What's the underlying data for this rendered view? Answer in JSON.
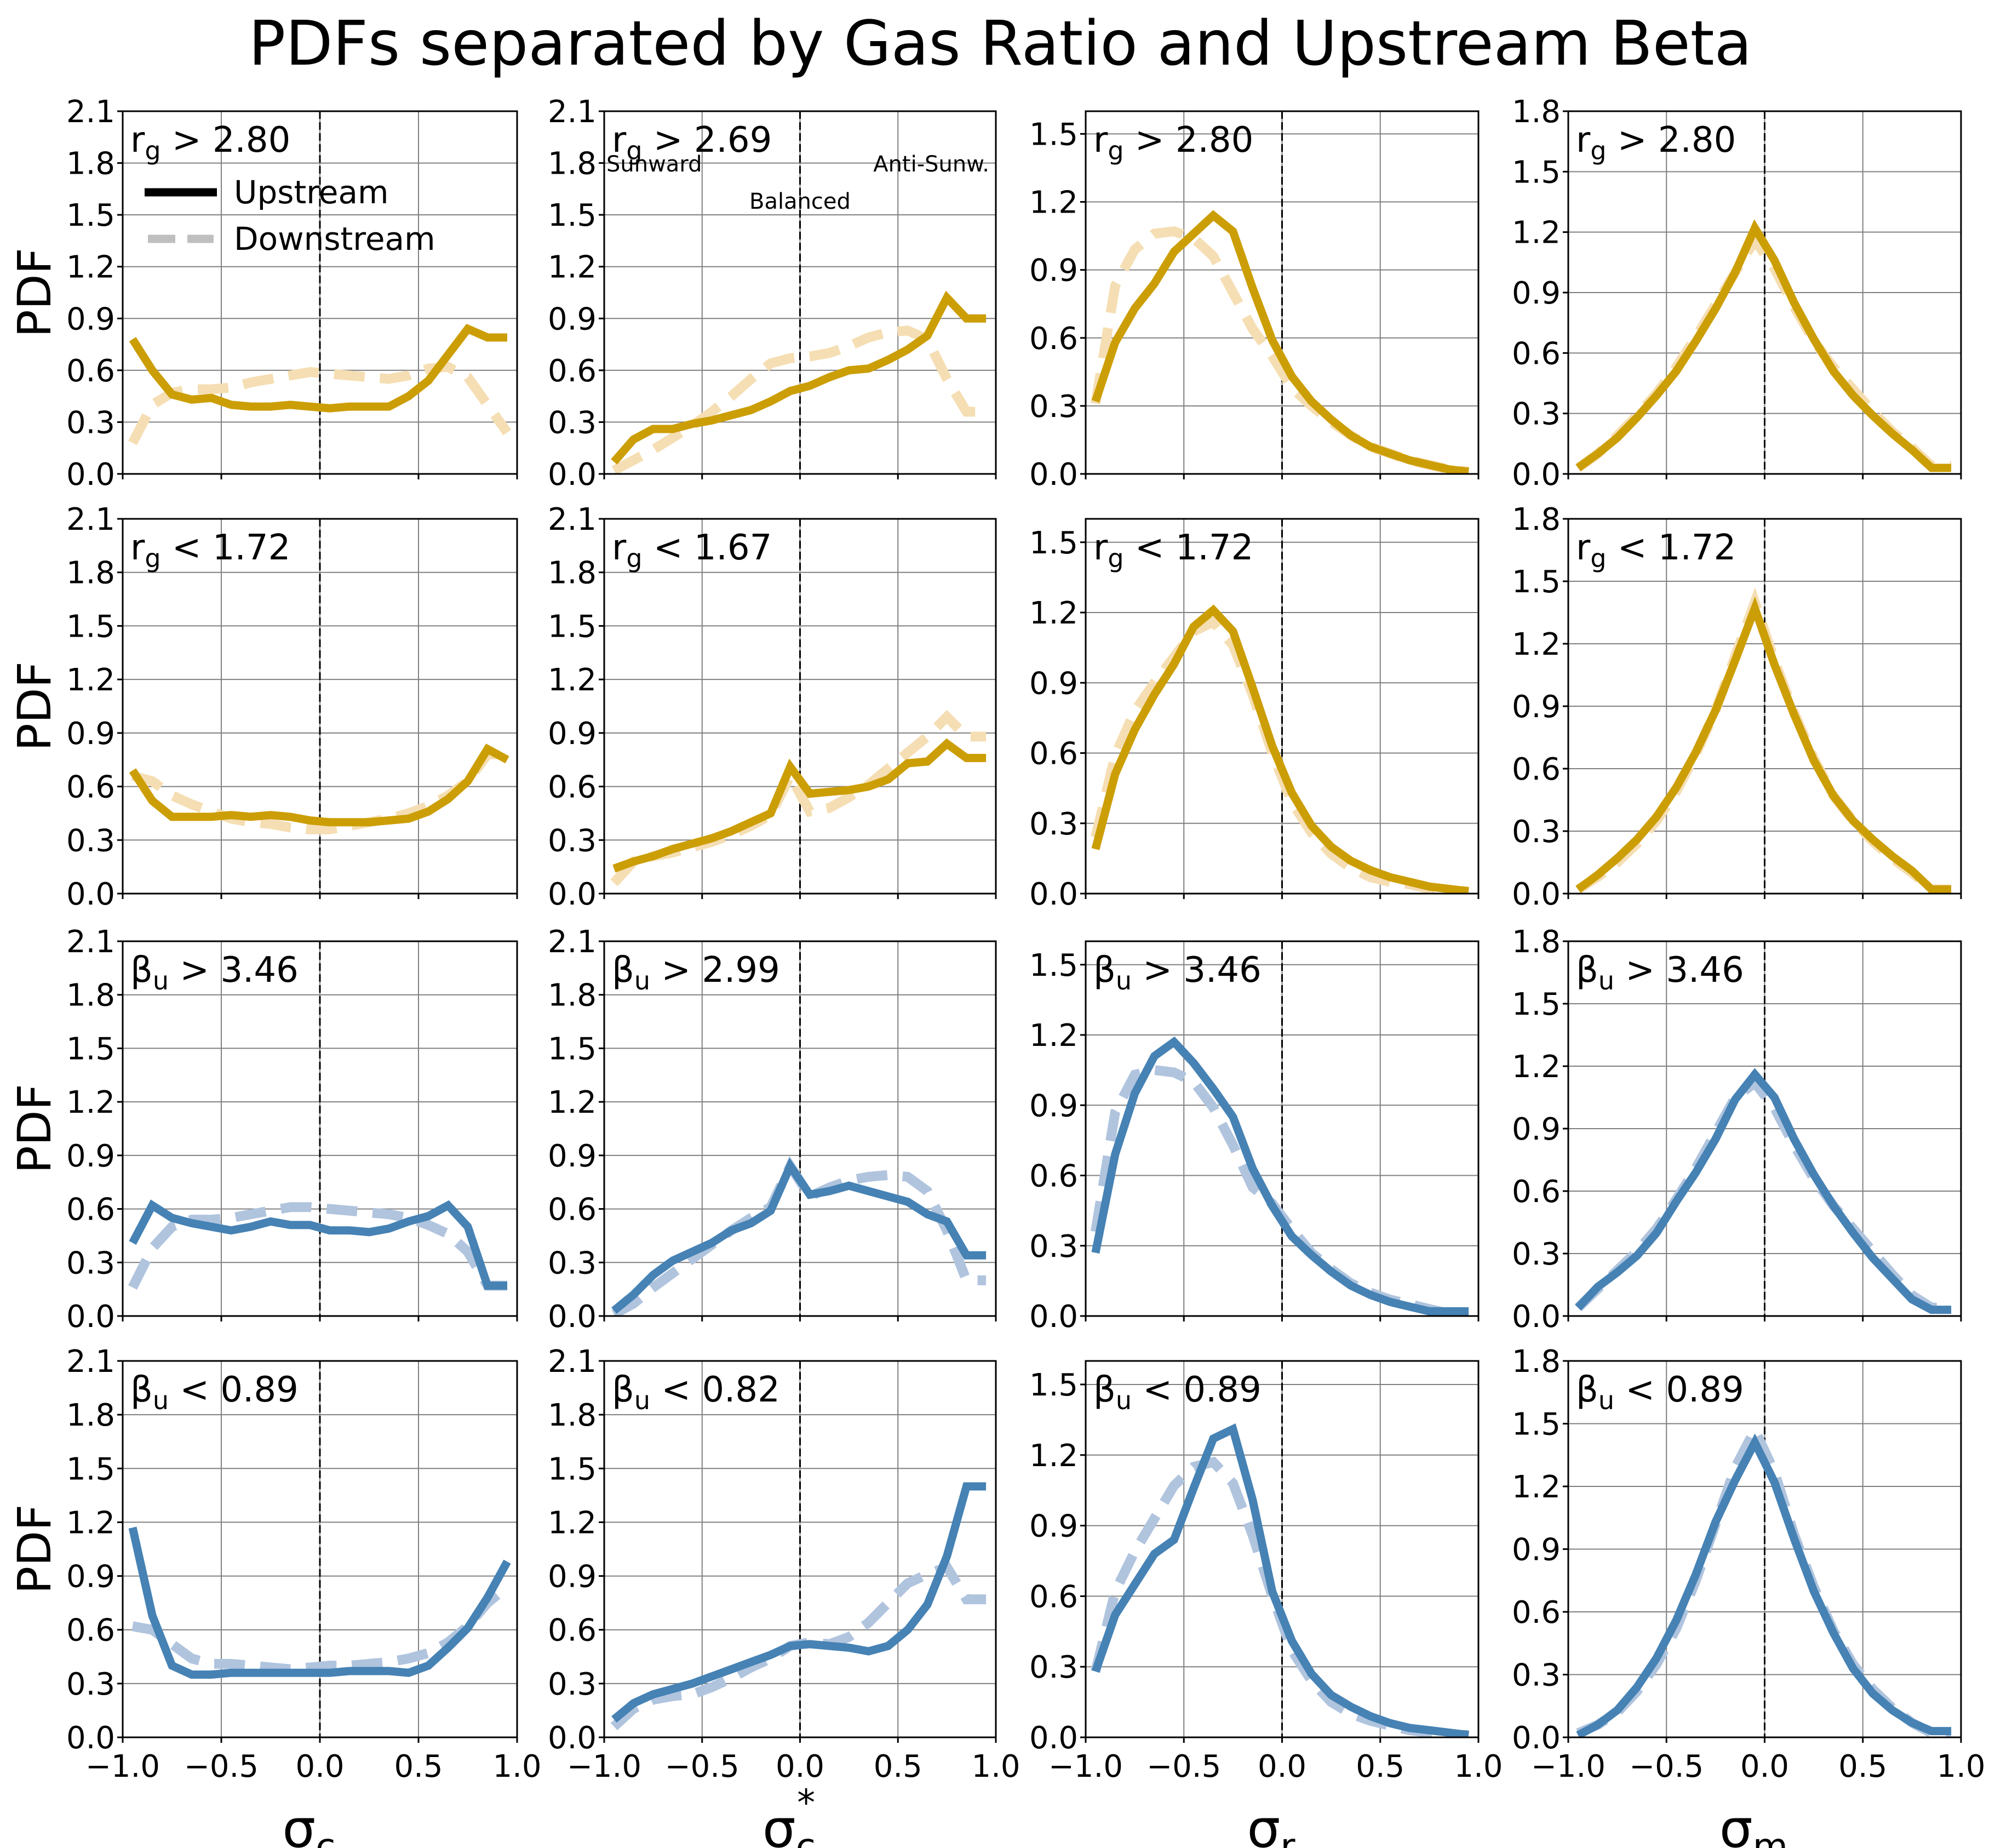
{
  "chart_data": {
    "type": "line",
    "title": "PDFs separated by Gas Ratio and Upstream Beta",
    "ylabel": "PDF",
    "legend": {
      "placement": "top-left of first panel",
      "entries": [
        {
          "name": "Upstream",
          "style": "solid",
          "color": "#000000"
        },
        {
          "name": "Downstream",
          "style": "dashed",
          "color": "#bfbfbf"
        }
      ]
    },
    "colors": {
      "gold_upstream": "#cc9e05",
      "gold_downstream": "#f5deb3",
      "blue_upstream": "#4682b4",
      "blue_downstream": "#b0c4de"
    },
    "grid": true,
    "reference_line_x": 0.0,
    "columns": [
      {
        "xlabel_main": "σ",
        "xlabel_sub": "c",
        "xlabel_sup": "",
        "ylim": [
          0,
          2.1
        ],
        "yticks": [
          "0.0",
          "0.3",
          "0.6",
          "0.9",
          "1.2",
          "1.5",
          "1.8",
          "2.1"
        ]
      },
      {
        "xlabel_main": "σ",
        "xlabel_sub": "c",
        "xlabel_sup": "*",
        "ylim": [
          0,
          2.1
        ],
        "yticks": [
          "0.0",
          "0.3",
          "0.6",
          "0.9",
          "1.2",
          "1.5",
          "1.8",
          "2.1"
        ]
      },
      {
        "xlabel_main": "σ",
        "xlabel_sub": "r",
        "xlabel_sup": "",
        "ylim": [
          0,
          1.6
        ],
        "yticks": [
          "0.0",
          "0.3",
          "0.6",
          "0.9",
          "1.2",
          "1.5"
        ]
      },
      {
        "xlabel_main": "σ",
        "xlabel_sub": "m",
        "xlabel_sup": "",
        "ylim": [
          0,
          1.8
        ],
        "yticks": [
          "0.0",
          "0.3",
          "0.6",
          "0.9",
          "1.2",
          "1.5",
          "1.8"
        ]
      }
    ],
    "xlim": [
      -1.0,
      1.0
    ],
    "xticks": [
      "−1.0",
      "−0.5",
      "0.0",
      "0.5",
      "1.0"
    ],
    "xtick_values": [
      -1.0,
      -0.5,
      0.0,
      0.5,
      1.0
    ],
    "annotations": {
      "panel": "row1-col2",
      "items": [
        "Sunward",
        "Balanced",
        "Anti-Sunw."
      ]
    },
    "x": [
      -0.95,
      -0.85,
      -0.75,
      -0.65,
      -0.55,
      -0.45,
      -0.35,
      -0.25,
      -0.15,
      -0.05,
      0.05,
      0.15,
      0.25,
      0.35,
      0.45,
      0.55,
      0.65,
      0.75,
      0.85,
      0.95
    ],
    "panels": [
      {
        "row": 0,
        "col": 0,
        "label_main": "r",
        "label_sub": "g",
        "label_rest": " > 2.80",
        "palette": "gold",
        "upstream": [
          0.78,
          0.6,
          0.46,
          0.43,
          0.44,
          0.4,
          0.39,
          0.39,
          0.4,
          0.39,
          0.38,
          0.39,
          0.39,
          0.39,
          0.45,
          0.54,
          0.69,
          0.84,
          0.79,
          0.79
        ],
        "downstream": [
          0.18,
          0.4,
          0.47,
          0.49,
          0.49,
          0.5,
          0.53,
          0.55,
          0.57,
          0.59,
          0.58,
          0.57,
          0.56,
          0.55,
          0.57,
          0.61,
          0.62,
          0.56,
          0.4,
          0.24
        ]
      },
      {
        "row": 0,
        "col": 1,
        "label_main": "r",
        "label_sub": "g",
        "label_rest": " > 2.69",
        "palette": "gold",
        "upstream": [
          0.07,
          0.2,
          0.26,
          0.26,
          0.29,
          0.31,
          0.34,
          0.37,
          0.42,
          0.48,
          0.51,
          0.56,
          0.6,
          0.61,
          0.66,
          0.72,
          0.8,
          1.02,
          0.9,
          0.9
        ],
        "downstream": [
          0.02,
          0.08,
          0.14,
          0.21,
          0.28,
          0.36,
          0.45,
          0.55,
          0.64,
          0.67,
          0.68,
          0.7,
          0.74,
          0.79,
          0.82,
          0.83,
          0.78,
          0.55,
          0.36,
          0.36
        ]
      },
      {
        "row": 0,
        "col": 2,
        "label_main": "r",
        "label_sub": "g",
        "label_rest": " > 2.80",
        "palette": "gold",
        "upstream": [
          0.32,
          0.58,
          0.73,
          0.84,
          0.98,
          1.06,
          1.14,
          1.07,
          0.82,
          0.59,
          0.43,
          0.32,
          0.24,
          0.17,
          0.12,
          0.09,
          0.06,
          0.04,
          0.02,
          0.01
        ],
        "downstream": [
          0.31,
          0.83,
          0.99,
          1.06,
          1.07,
          1.04,
          0.96,
          0.8,
          0.64,
          0.52,
          0.38,
          0.3,
          0.23,
          0.17,
          0.12,
          0.09,
          0.06,
          0.04,
          0.02,
          0.01
        ]
      },
      {
        "row": 0,
        "col": 3,
        "label_main": "r",
        "label_sub": "g",
        "label_rest": " > 2.80",
        "palette": "gold",
        "upstream": [
          0.03,
          0.1,
          0.18,
          0.28,
          0.39,
          0.51,
          0.66,
          0.82,
          1.0,
          1.22,
          1.06,
          0.85,
          0.67,
          0.51,
          0.39,
          0.29,
          0.2,
          0.12,
          0.03,
          0.03
        ],
        "downstream": [
          0.03,
          0.1,
          0.19,
          0.29,
          0.4,
          0.53,
          0.68,
          0.84,
          1.0,
          1.16,
          1.02,
          0.83,
          0.66,
          0.53,
          0.42,
          0.31,
          0.21,
          0.13,
          0.04,
          0.04
        ]
      },
      {
        "row": 1,
        "col": 0,
        "label_main": "r",
        "label_sub": "g",
        "label_rest": " < 1.72",
        "palette": "gold",
        "upstream": [
          0.69,
          0.52,
          0.43,
          0.43,
          0.43,
          0.44,
          0.43,
          0.44,
          0.43,
          0.41,
          0.4,
          0.4,
          0.4,
          0.41,
          0.42,
          0.46,
          0.53,
          0.63,
          0.81,
          0.75
        ],
        "downstream": [
          0.66,
          0.63,
          0.55,
          0.5,
          0.46,
          0.42,
          0.4,
          0.39,
          0.37,
          0.36,
          0.36,
          0.38,
          0.4,
          0.42,
          0.45,
          0.49,
          0.55,
          0.63,
          0.78,
          0.78
        ]
      },
      {
        "row": 1,
        "col": 1,
        "label_main": "r",
        "label_sub": "g",
        "label_rest": " < 1.67",
        "palette": "gold",
        "upstream": [
          0.14,
          0.18,
          0.21,
          0.25,
          0.28,
          0.31,
          0.35,
          0.4,
          0.45,
          0.71,
          0.56,
          0.57,
          0.58,
          0.6,
          0.64,
          0.73,
          0.74,
          0.84,
          0.76,
          0.76
        ],
        "downstream": [
          0.06,
          0.18,
          0.21,
          0.23,
          0.26,
          0.29,
          0.33,
          0.38,
          0.44,
          0.66,
          0.46,
          0.48,
          0.54,
          0.61,
          0.7,
          0.79,
          0.88,
          0.99,
          0.88,
          0.88
        ],
        "note": "upstream and downstream each end at x=0.95"
      },
      {
        "row": 1,
        "col": 2,
        "label_main": "r",
        "label_sub": "g",
        "label_rest": " < 1.72",
        "palette": "gold",
        "upstream": [
          0.19,
          0.51,
          0.7,
          0.85,
          0.98,
          1.14,
          1.21,
          1.12,
          0.88,
          0.63,
          0.43,
          0.29,
          0.2,
          0.14,
          0.1,
          0.07,
          0.05,
          0.03,
          0.02,
          0.01
        ],
        "downstream": [
          0.24,
          0.59,
          0.78,
          0.9,
          1.01,
          1.12,
          1.16,
          1.06,
          0.85,
          0.6,
          0.39,
          0.26,
          0.17,
          0.11,
          0.07,
          0.05,
          0.04,
          0.02,
          0.01,
          0.01
        ]
      },
      {
        "row": 1,
        "col": 3,
        "label_main": "r",
        "label_sub": "g",
        "label_rest": " < 1.72",
        "palette": "gold",
        "upstream": [
          0.02,
          0.09,
          0.17,
          0.26,
          0.37,
          0.51,
          0.68,
          0.88,
          1.12,
          1.37,
          1.1,
          0.86,
          0.64,
          0.47,
          0.35,
          0.26,
          0.18,
          0.11,
          0.02,
          0.02
        ],
        "downstream": [
          0.02,
          0.08,
          0.15,
          0.24,
          0.35,
          0.49,
          0.67,
          0.88,
          1.14,
          1.4,
          1.12,
          0.87,
          0.65,
          0.47,
          0.35,
          0.25,
          0.17,
          0.1,
          0.02,
          0.02
        ]
      },
      {
        "row": 2,
        "col": 0,
        "label_main": "β",
        "label_sub": "u",
        "label_rest": " > 3.46",
        "palette": "blue",
        "upstream": [
          0.41,
          0.62,
          0.55,
          0.52,
          0.5,
          0.48,
          0.5,
          0.53,
          0.51,
          0.51,
          0.48,
          0.48,
          0.47,
          0.49,
          0.53,
          0.56,
          0.62,
          0.5,
          0.17,
          0.17
        ],
        "downstream": [
          0.16,
          0.38,
          0.5,
          0.54,
          0.54,
          0.55,
          0.57,
          0.59,
          0.61,
          0.61,
          0.6,
          0.59,
          0.58,
          0.57,
          0.55,
          0.51,
          0.46,
          0.36,
          0.17,
          0.17
        ]
      },
      {
        "row": 2,
        "col": 1,
        "label_main": "β",
        "label_sub": "u",
        "label_rest": " > 2.99",
        "palette": "blue",
        "upstream": [
          0.03,
          0.12,
          0.23,
          0.31,
          0.36,
          0.41,
          0.48,
          0.52,
          0.59,
          0.84,
          0.68,
          0.7,
          0.73,
          0.7,
          0.67,
          0.64,
          0.57,
          0.53,
          0.34,
          0.34
        ],
        "downstream": [
          0.01,
          0.07,
          0.16,
          0.24,
          0.32,
          0.4,
          0.48,
          0.55,
          0.61,
          0.84,
          0.67,
          0.72,
          0.76,
          0.78,
          0.79,
          0.78,
          0.7,
          0.48,
          0.2,
          0.2
        ]
      },
      {
        "row": 2,
        "col": 2,
        "label_main": "β",
        "label_sub": "u",
        "label_rest": " > 3.46",
        "palette": "blue",
        "upstream": [
          0.27,
          0.69,
          0.95,
          1.11,
          1.17,
          1.08,
          0.97,
          0.85,
          0.63,
          0.47,
          0.34,
          0.26,
          0.19,
          0.13,
          0.09,
          0.06,
          0.04,
          0.02,
          0.02,
          0.02
        ],
        "downstream": [
          0.36,
          0.87,
          1.03,
          1.05,
          1.04,
          1.0,
          0.89,
          0.73,
          0.55,
          0.48,
          0.37,
          0.27,
          0.2,
          0.14,
          0.1,
          0.07,
          0.05,
          0.03,
          0.01,
          0.01
        ]
      },
      {
        "row": 2,
        "col": 3,
        "label_main": "β",
        "label_sub": "u",
        "label_rest": " > 3.46",
        "palette": "blue",
        "upstream": [
          0.04,
          0.14,
          0.21,
          0.29,
          0.4,
          0.55,
          0.69,
          0.85,
          1.04,
          1.16,
          1.05,
          0.85,
          0.68,
          0.53,
          0.4,
          0.28,
          0.18,
          0.08,
          0.03,
          0.03
        ],
        "downstream": [
          0.04,
          0.13,
          0.22,
          0.31,
          0.42,
          0.56,
          0.71,
          0.88,
          1.05,
          1.12,
          1.0,
          0.82,
          0.66,
          0.53,
          0.42,
          0.31,
          0.2,
          0.1,
          0.04,
          0.04
        ]
      },
      {
        "row": 3,
        "col": 0,
        "label_main": "β",
        "label_sub": "u",
        "label_rest": " < 0.89",
        "palette": "blue",
        "upstream": [
          1.17,
          0.68,
          0.4,
          0.35,
          0.35,
          0.36,
          0.36,
          0.36,
          0.36,
          0.36,
          0.36,
          0.37,
          0.37,
          0.37,
          0.36,
          0.4,
          0.5,
          0.61,
          0.78,
          0.98
        ],
        "downstream": [
          0.62,
          0.6,
          0.52,
          0.44,
          0.41,
          0.41,
          0.4,
          0.39,
          0.38,
          0.39,
          0.4,
          0.4,
          0.41,
          0.42,
          0.44,
          0.47,
          0.53,
          0.62,
          0.75,
          0.84
        ]
      },
      {
        "row": 3,
        "col": 1,
        "label_main": "β",
        "label_sub": "u",
        "label_rest": " < 0.82",
        "palette": "blue",
        "upstream": [
          0.1,
          0.19,
          0.24,
          0.27,
          0.3,
          0.34,
          0.38,
          0.42,
          0.46,
          0.51,
          0.52,
          0.51,
          0.5,
          0.48,
          0.51,
          0.6,
          0.74,
          1.01,
          1.4,
          1.4
        ],
        "downstream": [
          0.06,
          0.16,
          0.21,
          0.23,
          0.24,
          0.28,
          0.33,
          0.39,
          0.44,
          0.51,
          0.53,
          0.52,
          0.56,
          0.64,
          0.75,
          0.86,
          0.91,
          0.95,
          0.77,
          0.77
        ]
      },
      {
        "row": 3,
        "col": 2,
        "label_main": "β",
        "label_sub": "u",
        "label_rest": " < 0.89",
        "palette": "blue",
        "upstream": [
          0.28,
          0.52,
          0.65,
          0.78,
          0.84,
          1.06,
          1.27,
          1.31,
          1.01,
          0.62,
          0.41,
          0.27,
          0.18,
          0.13,
          0.09,
          0.06,
          0.04,
          0.03,
          0.02,
          0.01
        ],
        "downstream": [
          0.28,
          0.62,
          0.79,
          0.93,
          1.07,
          1.15,
          1.17,
          1.08,
          0.86,
          0.6,
          0.37,
          0.24,
          0.15,
          0.1,
          0.07,
          0.05,
          0.03,
          0.02,
          0.01,
          0.01
        ]
      },
      {
        "row": 3,
        "col": 3,
        "label_main": "β",
        "label_sub": "u",
        "label_rest": " < 0.89",
        "palette": "blue",
        "upstream": [
          0.01,
          0.06,
          0.13,
          0.24,
          0.38,
          0.56,
          0.78,
          1.03,
          1.23,
          1.41,
          1.22,
          0.95,
          0.7,
          0.5,
          0.33,
          0.21,
          0.13,
          0.07,
          0.03,
          0.03
        ],
        "downstream": [
          0.02,
          0.06,
          0.12,
          0.22,
          0.35,
          0.52,
          0.75,
          1.02,
          1.29,
          1.47,
          1.27,
          0.97,
          0.72,
          0.51,
          0.35,
          0.23,
          0.14,
          0.07,
          0.02,
          0.02
        ]
      }
    ]
  }
}
